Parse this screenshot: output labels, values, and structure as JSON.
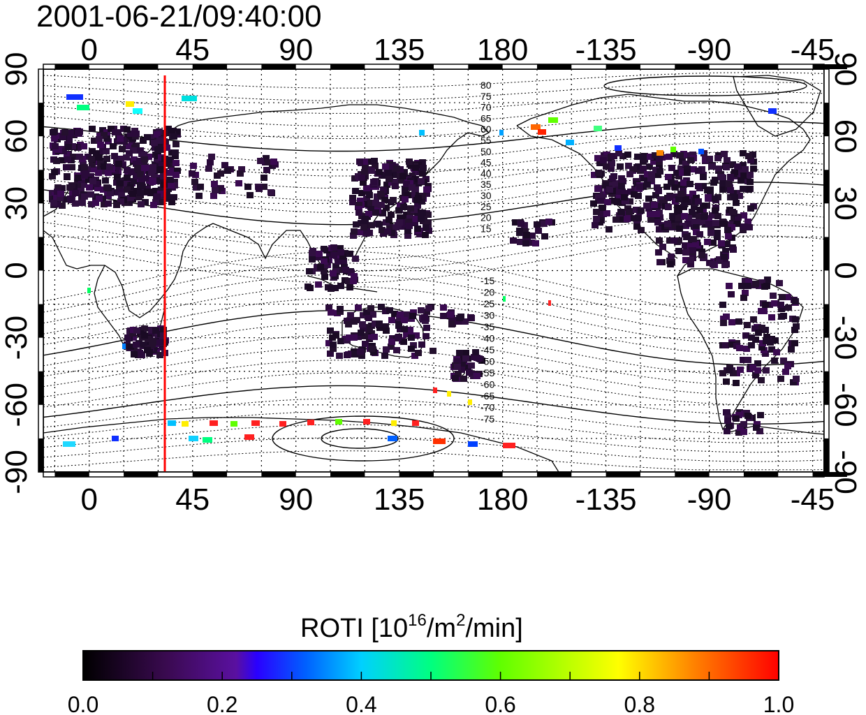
{
  "title": "2001-06-21/09:40:00",
  "axes": {
    "lon_ticks": [
      "0",
      "45",
      "90",
      "135",
      "180",
      "-135",
      "-90",
      "-45"
    ],
    "lat_ticks_left": [
      "90",
      "60",
      "30",
      "0",
      "-30",
      "-60",
      "-90"
    ],
    "lat_ticks_right": [
      "90",
      "60",
      "30",
      "0",
      "-30",
      "-60",
      "-90"
    ]
  },
  "contour_labels_north": [
    "80",
    "75",
    "70",
    "65",
    "60",
    "55",
    "50",
    "45",
    "40",
    "35",
    "30",
    "25",
    "20",
    "15"
  ],
  "contour_labels_south": [
    "-15",
    "-20",
    "-25",
    "-30",
    "-35",
    "-40",
    "-45",
    "-50",
    "-55",
    "-60",
    "-65",
    "-70",
    "-75"
  ],
  "marker_line": {
    "color": "#ff0000",
    "longitude": 34
  },
  "colorbar": {
    "label_main": "ROTI  [10",
    "label_sup1": "16",
    "label_mid": "/m",
    "label_sup2": "2",
    "label_end": "/min]",
    "ticks": [
      "0.0",
      "0.2",
      "0.4",
      "0.6",
      "0.8",
      "1.0"
    ],
    "colors": [
      "#000000",
      "#3a0a50",
      "#5a10a0",
      "#2a00ff",
      "#0060ff",
      "#00d0ff",
      "#00ff80",
      "#60ff00",
      "#ffff00",
      "#ff8000",
      "#ff0000"
    ]
  },
  "map_data": {
    "type": "roti-map",
    "lon_range": [
      -20,
      320
    ],
    "lat_range": [
      -90,
      90
    ],
    "grid": true
  }
}
